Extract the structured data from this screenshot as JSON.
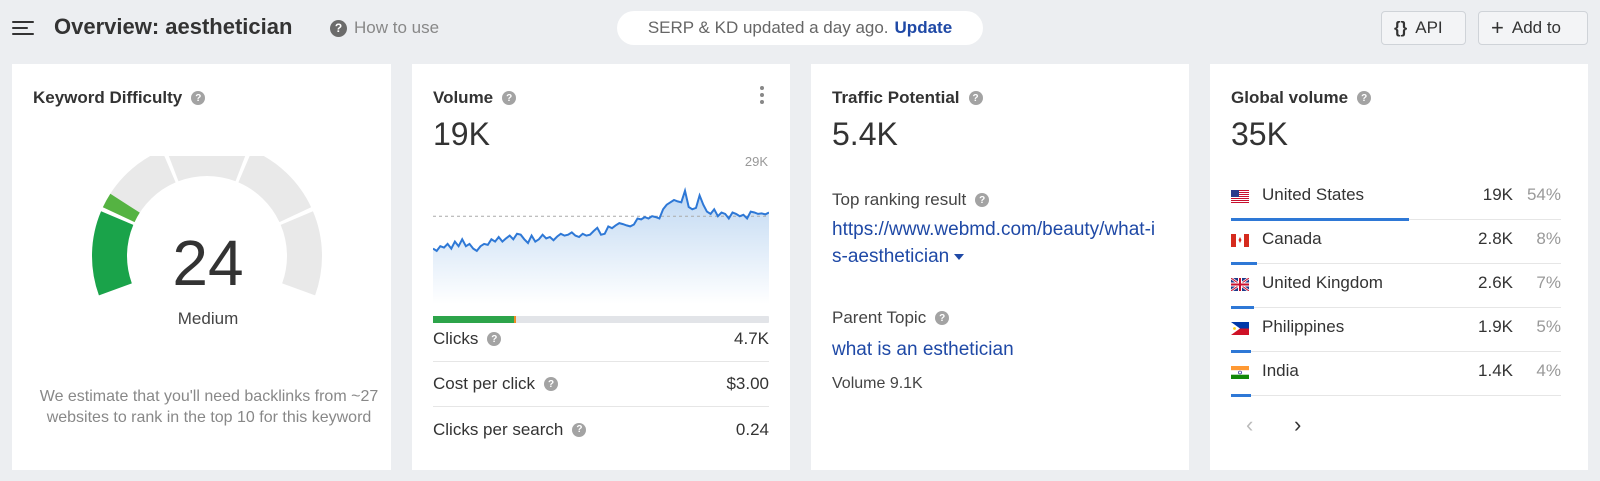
{
  "header": {
    "title": "Overview: aesthetician",
    "help_label": "How to use",
    "serp_status": "SERP & KD updated a day ago.",
    "update_label": "Update",
    "api_label": "API",
    "add_label": "Add to"
  },
  "kd": {
    "title": "Keyword Difficulty",
    "score": "24",
    "level": "Medium",
    "score_fraction": 0.24,
    "description": "We estimate that you'll need backlinks from ~27 websites to rank in the top 10 for this keyword",
    "gauge_color": "#1aa34a"
  },
  "volume": {
    "title": "Volume",
    "value": "19K",
    "chart_max_label": "29K",
    "clicks_split": {
      "organic_fraction": 0.24,
      "paid_fraction": 0.006
    },
    "stats": [
      {
        "label": "Clicks",
        "value": "4.7K"
      },
      {
        "label": "Cost per click",
        "value": "$3.00"
      },
      {
        "label": "Clicks per search",
        "value": "0.24"
      }
    ]
  },
  "chart_data": {
    "type": "area",
    "title": "",
    "xlabel": "",
    "ylabel": "",
    "ylim": [
      0,
      29000
    ],
    "max_label": "29K",
    "reference_line": 19000,
    "series": [
      {
        "values": [
          12000,
          11500,
          12500,
          12200,
          13000,
          12000,
          13500,
          12500,
          14000,
          12500,
          13000,
          12000,
          11500,
          12500,
          13000,
          12800,
          14000,
          13500,
          14500,
          13500,
          14200,
          14800,
          14000,
          15200,
          15000,
          14000,
          13200,
          14800,
          13500,
          14000,
          15000,
          14200,
          14500,
          13800,
          14600,
          15200,
          14800,
          15000,
          15500,
          14800,
          14500,
          15200,
          14800,
          15000,
          15800,
          16500,
          15000,
          15200,
          16800,
          16400,
          17000,
          17500,
          17300,
          17000,
          16800,
          17200,
          18500,
          18300,
          18800,
          18500,
          19000,
          18800,
          18500,
          20500,
          21500,
          22000,
          22500,
          22200,
          22000,
          24500,
          21000,
          20500,
          20800,
          23500,
          21500,
          20000,
          19500,
          20500,
          19000,
          19800,
          19500,
          18500,
          19800,
          19500,
          19000,
          19300,
          18500,
          20000,
          19800,
          19500,
          19600,
          19400,
          19800
        ]
      }
    ]
  },
  "traffic": {
    "title": "Traffic Potential",
    "value": "5.4K",
    "top_result_label": "Top ranking result",
    "top_result_url": "https://www.webmd.com/beauty/what-is-aesthetician",
    "parent_topic_label": "Parent Topic",
    "parent_topic": "what is an esthetician",
    "parent_volume": "Volume 9.1K"
  },
  "global": {
    "title": "Global volume",
    "value": "35K",
    "countries": [
      {
        "name": "United States",
        "volume": "19K",
        "pct": "54%",
        "share": 0.54,
        "flag": "us"
      },
      {
        "name": "Canada",
        "volume": "2.8K",
        "pct": "8%",
        "share": 0.08,
        "flag": "ca"
      },
      {
        "name": "United Kingdom",
        "volume": "2.6K",
        "pct": "7%",
        "share": 0.07,
        "flag": "gb"
      },
      {
        "name": "Philippines",
        "volume": "1.9K",
        "pct": "5%",
        "share": 0.05,
        "flag": "ph"
      },
      {
        "name": "India",
        "volume": "1.4K",
        "pct": "4%",
        "share": 0.04,
        "flag": "in"
      }
    ]
  }
}
